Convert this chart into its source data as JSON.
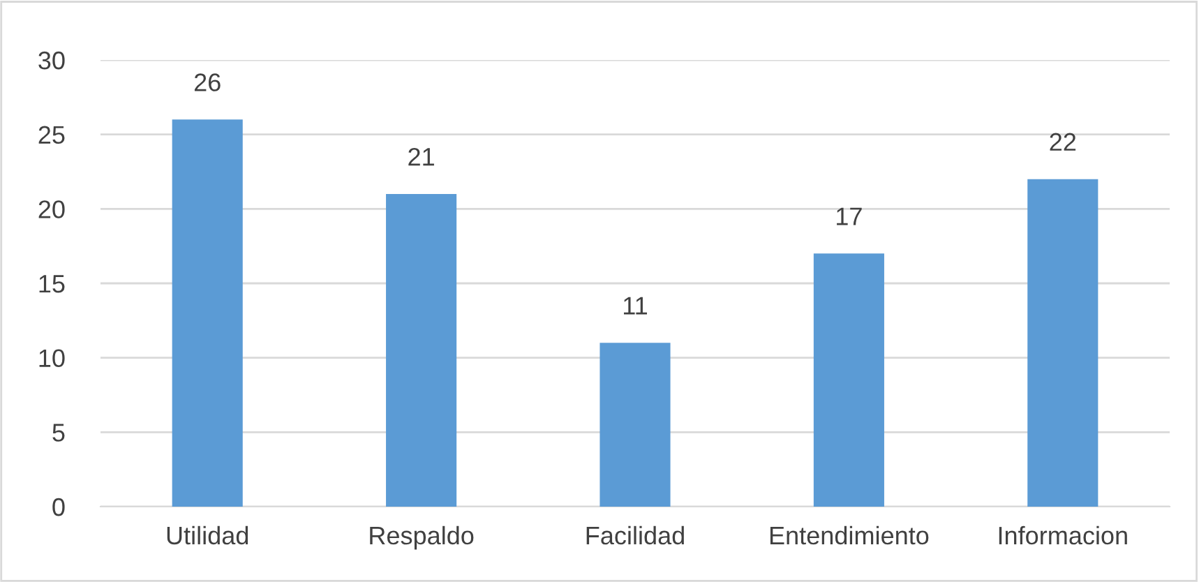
{
  "chart_data": {
    "type": "bar",
    "categories": [
      "Utilidad",
      "Respaldo",
      "Facilidad",
      "Entendimiento",
      "Informacion"
    ],
    "values": [
      26,
      21,
      11,
      17,
      22
    ],
    "color": "#5b9bd5",
    "ylim": [
      0,
      30
    ],
    "yticks": [
      0,
      5,
      10,
      15,
      20,
      25,
      30
    ],
    "grid": "y",
    "data_labels": true,
    "legend": false
  }
}
